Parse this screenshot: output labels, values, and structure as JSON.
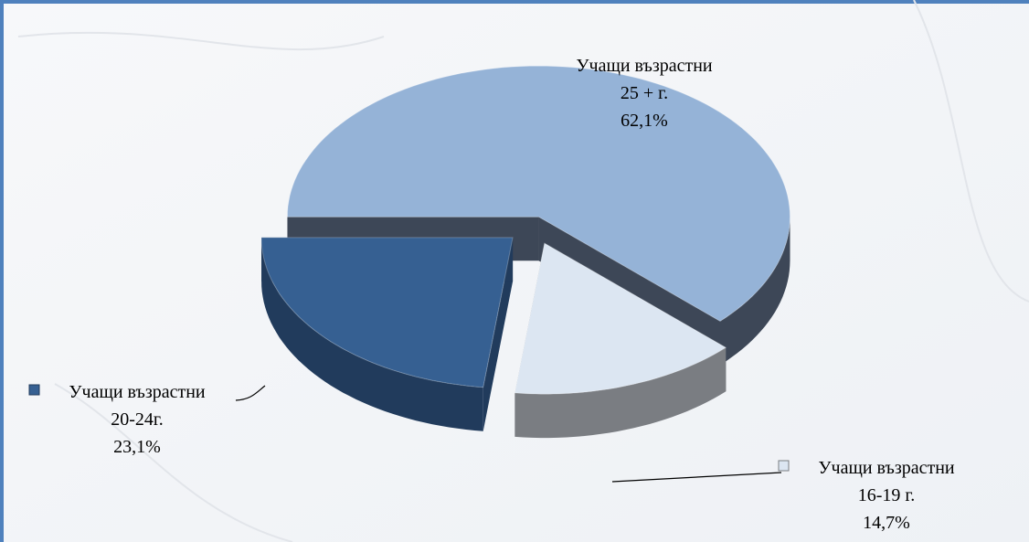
{
  "chart_data": {
    "type": "pie3d",
    "categories": [
      [
        "Учащи възрастни",
        "25 + г."
      ],
      [
        "Учащи възрастни",
        "16-19 г."
      ],
      [
        "Учащи възрастни",
        "20-24г."
      ]
    ],
    "values": [
      62.1,
      14.7,
      23.1
    ],
    "value_labels": [
      "62,1%",
      "14,7%",
      "23,1%"
    ],
    "colors": [
      "#95b3d7",
      "#dce6f2",
      "#366092"
    ]
  }
}
